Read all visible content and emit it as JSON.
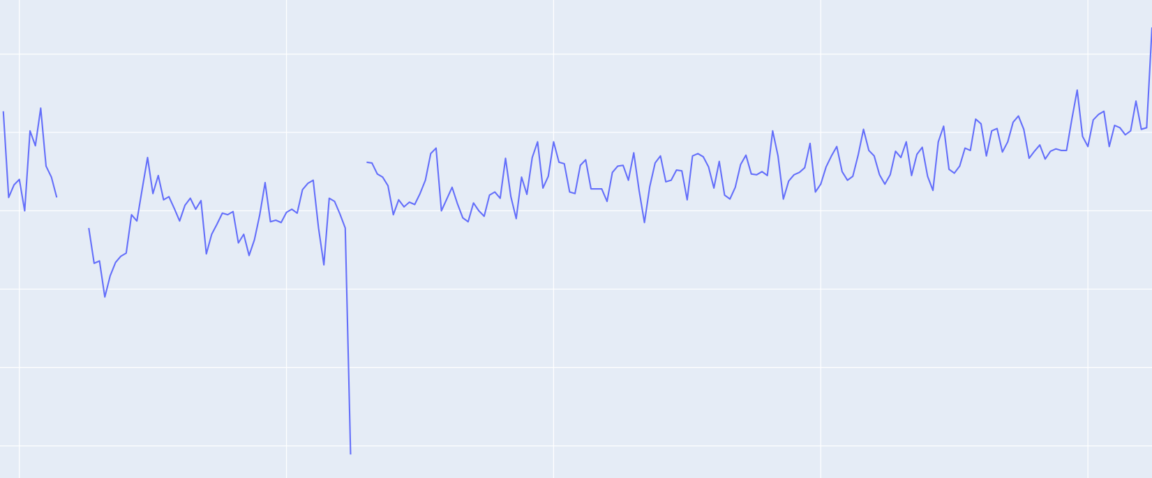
{
  "chart_data": {
    "type": "line",
    "x": [
      0,
      1,
      2,
      3,
      4,
      5,
      6,
      7,
      8,
      9,
      10,
      11,
      12,
      13,
      14,
      15,
      16,
      17,
      18,
      19,
      20,
      21,
      22,
      23,
      24,
      25,
      26,
      27,
      28,
      29,
      30,
      31,
      32,
      33,
      34,
      35,
      36,
      37,
      38,
      39,
      40,
      41,
      42,
      43,
      44,
      45,
      46,
      47,
      48,
      49,
      50,
      51,
      52,
      53,
      54,
      55,
      56,
      57,
      58,
      59,
      60,
      61,
      62,
      63,
      64,
      65,
      66,
      67,
      68,
      69,
      70,
      71,
      72,
      73,
      74,
      75,
      76,
      77,
      78,
      79,
      80,
      81,
      82,
      83,
      84,
      85,
      86,
      87,
      88,
      89,
      90,
      91,
      92,
      93,
      94,
      95,
      96,
      97,
      98,
      99,
      100,
      101,
      102,
      103,
      104,
      105,
      106,
      107,
      108,
      109,
      110,
      111,
      112,
      113,
      114,
      115,
      116,
      117,
      118,
      119,
      120,
      121,
      122,
      123,
      124,
      125,
      126,
      127,
      128,
      129,
      130,
      131,
      132,
      133,
      134,
      135,
      136,
      137,
      138,
      139,
      140,
      141,
      142,
      143,
      144,
      145,
      146,
      147,
      148,
      149,
      150,
      151,
      152,
      153,
      154,
      155,
      156,
      157,
      158,
      159,
      160,
      161,
      162,
      163,
      164,
      165,
      166,
      167,
      168,
      169,
      170,
      171,
      172,
      173,
      174,
      175,
      176,
      177,
      178,
      179,
      180,
      181,
      182,
      183,
      184,
      185,
      186,
      187,
      188,
      189,
      190,
      191,
      192,
      193,
      194,
      195,
      196,
      197,
      198,
      199,
      200,
      201,
      202,
      203,
      204,
      205,
      206,
      207,
      208,
      209,
      210,
      211,
      212,
      213,
      214,
      215
    ],
    "series": [
      {
        "color": "#636efa",
        "values": [
          427,
          317,
          333,
          340,
          300,
          402,
          383,
          431,
          357,
          343,
          317,
          null,
          null,
          null,
          null,
          null,
          278,
          233,
          236,
          190,
          217,
          234,
          242,
          246,
          295,
          287,
          328,
          368,
          322,
          345,
          314,
          318,
          303,
          287,
          307,
          316,
          302,
          313,
          245,
          270,
          283,
          297,
          295,
          299,
          259,
          270,
          243,
          263,
          295,
          336,
          286,
          288,
          285,
          298,
          302,
          297,
          327,
          335,
          339,
          278,
          231,
          316,
          312,
          296,
          278,
          -11,
          null,
          null,
          362,
          361,
          347,
          343,
          332,
          295,
          314,
          305,
          311,
          308,
          322,
          339,
          373,
          380,
          300,
          315,
          330,
          309,
          291,
          286,
          310,
          300,
          293,
          320,
          324,
          316,
          367,
          318,
          290,
          343,
          321,
          368,
          388,
          329,
          344,
          388,
          362,
          360,
          324,
          322,
          358,
          365,
          328,
          328,
          328,
          312,
          349,
          357,
          358,
          339,
          374,
          326,
          285,
          331,
          361,
          370,
          337,
          339,
          352,
          351,
          314,
          370,
          373,
          369,
          356,
          329,
          363,
          320,
          315,
          330,
          359,
          371,
          347,
          346,
          350,
          345,
          402,
          370,
          315,
          338,
          346,
          349,
          355,
          386,
          324,
          334,
          356,
          370,
          382,
          350,
          339,
          344,
          371,
          404,
          377,
          370,
          346,
          334,
          346,
          376,
          368,
          388,
          345,
          372,
          381,
          344,
          326,
          388,
          408,
          353,
          348,
          357,
          380,
          377,
          417,
          411,
          370,
          402,
          405,
          375,
          388,
          413,
          421,
          404,
          367,
          376,
          384,
          366,
          376,
          379,
          377,
          377,
          417,
          454,
          395,
          382,
          416,
          423,
          427,
          382,
          409,
          406,
          397,
          402,
          440,
          404,
          406,
          534
        ]
      }
    ],
    "xlim": [
      -0.62,
      215
    ],
    "xticks": [
      3,
      53,
      103,
      153,
      203
    ],
    "ylim": [
      -41,
      569
    ],
    "yticks": [
      0,
      100,
      200,
      300,
      400,
      500
    ],
    "grid": true,
    "background": "#e5ecf6"
  }
}
